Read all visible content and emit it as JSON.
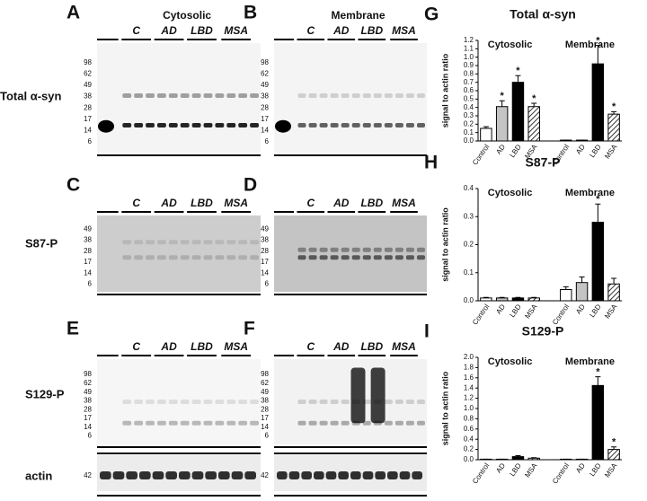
{
  "panels": [
    {
      "letter": "A",
      "header": "Cytosolic",
      "lanes": [
        "C",
        "AD",
        "LBD",
        "MSA"
      ],
      "markers": [
        "98",
        "62",
        "49",
        "38",
        "28",
        "17",
        "14",
        "6"
      ]
    },
    {
      "letter": "B",
      "header": "Membrane",
      "lanes": [
        "C",
        "AD",
        "LBD",
        "MSA"
      ],
      "markers": [
        "98",
        "62",
        "49",
        "38",
        "28",
        "17",
        "14",
        "6"
      ]
    },
    {
      "letter": "C",
      "lanes": [
        "C",
        "AD",
        "LBD",
        "MSA"
      ],
      "markers": [
        "49",
        "38",
        "28",
        "17",
        "14",
        "6"
      ]
    },
    {
      "letter": "D",
      "lanes": [
        "C",
        "AD",
        "LBD",
        "MSA"
      ],
      "markers": [
        "49",
        "38",
        "28",
        "17",
        "14",
        "6"
      ]
    },
    {
      "letter": "E",
      "lanes": [
        "C",
        "AD",
        "LBD",
        "MSA"
      ],
      "markers": [
        "98",
        "62",
        "49",
        "38",
        "28",
        "17",
        "14",
        "6"
      ]
    },
    {
      "letter": "F",
      "lanes": [
        "C",
        "AD",
        "LBD",
        "MSA"
      ],
      "markers": [
        "98",
        "62",
        "49",
        "38",
        "28",
        "17",
        "14",
        "6"
      ]
    }
  ],
  "rows": [
    "Total α-syn",
    "S87-P",
    "S129-P",
    "actin"
  ],
  "actin_markers": [
    "42",
    "42"
  ],
  "chart_data": [
    {
      "type": "bar",
      "panel": "G",
      "title": "Total α-syn",
      "ylabel": "signal to actin ratio",
      "groups": [
        "Cytosolic",
        "Membrane"
      ],
      "categories": [
        "Control",
        "AD",
        "LBD",
        "MSA",
        "Control",
        "AD",
        "LBD",
        "MSA"
      ],
      "values": [
        0.15,
        0.41,
        0.7,
        0.41,
        0.01,
        0.01,
        0.92,
        0.32
      ],
      "errors": [
        0.02,
        0.07,
        0.08,
        0.04,
        0,
        0,
        0.22,
        0.03
      ],
      "markers": [
        null,
        "*",
        "*",
        "*",
        null,
        null,
        "*",
        "*"
      ],
      "fills": [
        "#ffffff",
        "#c4c4c4",
        "#000000",
        "hatch",
        "#ffffff",
        "#c4c4c4",
        "#000000",
        "hatch"
      ],
      "ylim": [
        0,
        1.2
      ],
      "yticks": [
        {
          "value": 0,
          "label": "0.0"
        },
        0.1,
        0.2,
        0.3,
        0.4,
        0.5,
        0.6,
        0.7,
        0.8,
        0.9,
        {
          "value": 1,
          "label": "1.0"
        },
        1.1,
        1.2
      ]
    },
    {
      "type": "bar",
      "panel": "H",
      "title": "S87-P",
      "ylabel": "signal to actin ratio",
      "groups": [
        "Cytosolic",
        "Membrane"
      ],
      "categories": [
        "Control",
        "AD",
        "LBD",
        "MSA",
        "Control",
        "AD",
        "LBD",
        "MSA"
      ],
      "values": [
        0.01,
        0.01,
        0.01,
        0.01,
        0.04,
        0.065,
        0.28,
        0.06
      ],
      "errors": [
        0.002,
        0.002,
        0.002,
        0.002,
        0.01,
        0.02,
        0.065,
        0.02
      ],
      "markers": [
        null,
        null,
        null,
        null,
        null,
        null,
        "*",
        null
      ],
      "fills": [
        "#ffffff",
        "#c4c4c4",
        "#000000",
        "hatch",
        "#ffffff",
        "#c4c4c4",
        "#000000",
        "hatch"
      ],
      "ylim": [
        0,
        0.4
      ],
      "yticks": [
        {
          "value": 0,
          "label": "0.0"
        },
        0.1,
        0.2,
        0.3,
        0.4
      ]
    },
    {
      "type": "bar",
      "panel": "I",
      "title": "S129-P",
      "ylabel": "signal to actin ratio",
      "groups": [
        "Cytosolic",
        "Membrane"
      ],
      "categories": [
        "Control",
        "AD",
        "LBD",
        "MSA",
        "Control",
        "AD",
        "LBD",
        "MSA"
      ],
      "values": [
        0.01,
        0.01,
        0.06,
        0.03,
        0.01,
        0.01,
        1.45,
        0.2
      ],
      "errors": [
        0,
        0,
        0.02,
        0.01,
        0,
        0,
        0.17,
        0.05
      ],
      "markers": [
        null,
        null,
        null,
        null,
        null,
        null,
        "*",
        "*"
      ],
      "fills": [
        "#ffffff",
        "#c4c4c4",
        "#000000",
        "hatch",
        "#ffffff",
        "#c4c4c4",
        "#000000",
        "hatch"
      ],
      "ylim": [
        0,
        2
      ],
      "yticks": [
        {
          "value": 0,
          "label": "0.0"
        },
        0.2,
        0.4,
        0.6,
        0.8,
        {
          "value": 1,
          "label": "1.0"
        },
        1.2,
        1.4,
        1.6,
        1.8,
        {
          "value": 2,
          "label": "2.0"
        }
      ]
    }
  ]
}
